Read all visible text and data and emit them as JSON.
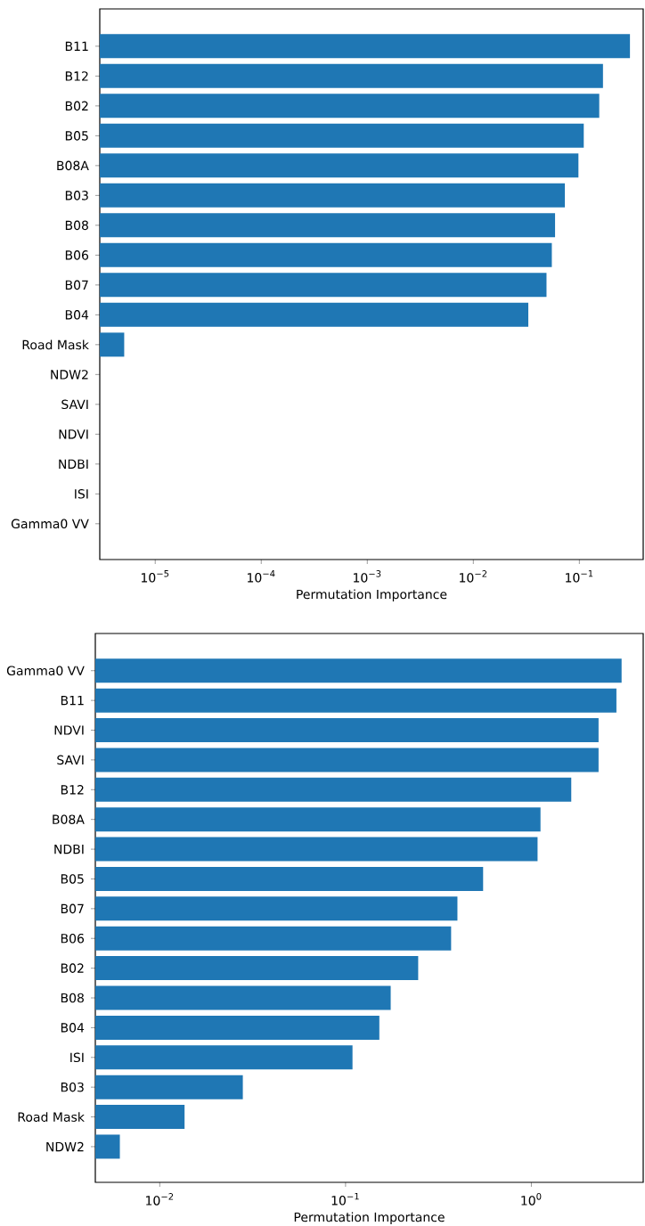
{
  "chart_data": [
    {
      "type": "bar",
      "orientation": "horizontal",
      "log": "x",
      "xlabel": "Permutation Importance",
      "color": "#1f77b4",
      "categories": [
        "B11",
        "B12",
        "B02",
        "B05",
        "B08A",
        "B03",
        "B08",
        "B06",
        "B07",
        "B04",
        "Road Mask",
        "NDW2",
        "SAVI",
        "NDVI",
        "NDBI",
        "ISI",
        "Gamma0 VV"
      ],
      "values": [
        0.3,
        0.167,
        0.154,
        0.11,
        0.098,
        0.073,
        0.059,
        0.055,
        0.049,
        0.033,
        5.1e-06,
        null,
        null,
        null,
        null,
        null,
        null
      ],
      "xlim": [
        3e-06,
        0.4
      ],
      "xticks": [
        {
          "value": 1e-05,
          "label": "10$^{−5}$"
        },
        {
          "value": 0.0001,
          "label": "10$^{−4}$"
        },
        {
          "value": 0.001,
          "label": "10$^{−3}$"
        },
        {
          "value": 0.01,
          "label": "10$^{−2}$"
        },
        {
          "value": 0.1,
          "label": "10$^{−1}$"
        }
      ]
    },
    {
      "type": "bar",
      "orientation": "horizontal",
      "log": "x",
      "xlabel": "Permutation Importance",
      "color": "#1f77b4",
      "categories": [
        "Gamma0 VV",
        "B11",
        "NDVI",
        "SAVI",
        "B12",
        "B08A",
        "NDBI",
        "B05",
        "B07",
        "B06",
        "B02",
        "B08",
        "B04",
        "ISI",
        "B03",
        "Road Mask",
        "NDW2"
      ],
      "values": [
        3.06,
        2.87,
        2.3,
        2.3,
        1.64,
        1.12,
        1.08,
        0.55,
        0.4,
        0.37,
        0.246,
        0.175,
        0.152,
        0.109,
        0.028,
        0.0136,
        0.0061
      ],
      "xlim": [
        0.0045,
        4
      ],
      "xticks": [
        {
          "value": 0.01,
          "label": "10$^{−2}$"
        },
        {
          "value": 0.1,
          "label": "10$^{−1}$"
        },
        {
          "value": 1,
          "label": "10$^{0}$"
        }
      ]
    }
  ]
}
